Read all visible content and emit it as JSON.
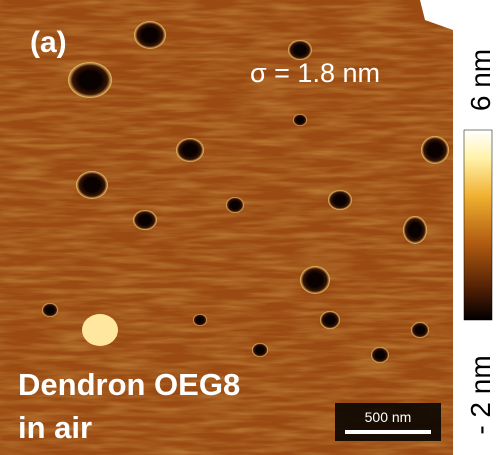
{
  "panel_label": "(a)",
  "roughness": "σ = 1.8 nm",
  "sample": {
    "line1": "Dendron OEG8",
    "line2": "in air"
  },
  "scale_bar": "500 nm",
  "colorbar": {
    "top": "6 nm",
    "bottom": "- 2 nm"
  }
}
